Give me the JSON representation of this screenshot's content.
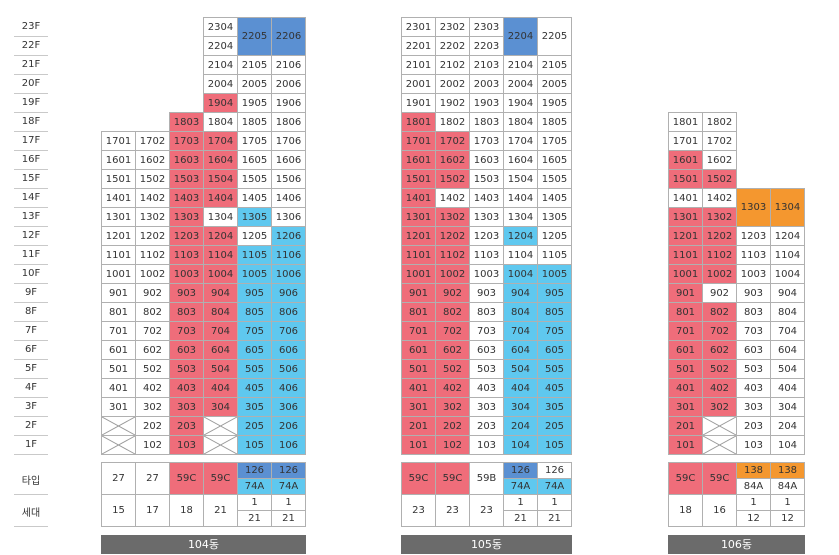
{
  "floors": [
    "23F",
    "22F",
    "21F",
    "20F",
    "19F",
    "18F",
    "17F",
    "16F",
    "15F",
    "14F",
    "13F",
    "12F",
    "11F",
    "10F",
    "9F",
    "8F",
    "7F",
    "6F",
    "5F",
    "4F",
    "3F",
    "2F",
    "1F"
  ],
  "row_labels": {
    "type": "타입",
    "households": "세대"
  },
  "colors": {
    "red": "#ef6d7a",
    "blue": "#5fc8ef",
    "dark_blue": "#5b90d2",
    "orange": "#f4972f",
    "bar": "#6b6b6b"
  },
  "buildings": [
    {
      "name": "104동",
      "columns": [
        {
          "line": "01",
          "top_floor": 17,
          "bottom_floor": 3,
          "x_floors": [
            1,
            2
          ],
          "red": [],
          "blue": []
        },
        {
          "line": "02",
          "top_floor": 17,
          "bottom_floor": 1,
          "x_floors": [],
          "red": [],
          "blue": []
        },
        {
          "line": "03",
          "top_floor": 18,
          "bottom_floor": 1,
          "x_floors": [],
          "red": [
            1,
            2,
            3,
            4,
            5,
            6,
            7,
            8,
            9,
            10,
            11,
            12,
            13,
            14,
            15,
            16,
            17,
            18
          ],
          "blue": []
        },
        {
          "line": "04",
          "top_floor": 23,
          "bottom_floor": 3,
          "x_floors": [
            1,
            2
          ],
          "red": [
            3,
            4,
            5,
            6,
            7,
            8,
            9,
            10,
            11,
            12,
            14,
            15,
            16,
            17,
            19
          ],
          "blue": []
        },
        {
          "line": "05",
          "top_floor": 21,
          "bottom_floor": 1,
          "x_floors": [],
          "red": [],
          "blue": [
            1,
            2,
            3,
            4,
            5,
            6,
            7,
            8,
            9,
            10,
            11,
            13
          ],
          "merged": {
            "label": "2205",
            "color": "dark_blue"
          }
        },
        {
          "line": "06",
          "top_floor": 21,
          "bottom_floor": 1,
          "x_floors": [],
          "red": [],
          "blue": [
            1,
            2,
            3,
            4,
            5,
            6,
            7,
            8,
            9,
            10,
            11,
            12
          ],
          "merged": {
            "label": "2206",
            "color": "dark_blue"
          }
        }
      ],
      "info": [
        {
          "type": "27",
          "type_color": "",
          "sub": "",
          "households": "15"
        },
        {
          "type": "27",
          "type_color": "",
          "sub": "",
          "households": "17"
        },
        {
          "type": "59C",
          "type_color": "red",
          "sub": "",
          "households": "18"
        },
        {
          "type": "59C",
          "type_color": "red",
          "sub": "",
          "households": "21"
        },
        {
          "type": "126",
          "type_color": "dark_blue",
          "sub": "74A",
          "sub_color": "blue",
          "households_top": "1",
          "households": "21"
        },
        {
          "type": "126",
          "type_color": "dark_blue",
          "sub": "74A",
          "sub_color": "blue",
          "households_top": "1",
          "households": "21"
        }
      ]
    },
    {
      "name": "105동",
      "columns": [
        {
          "line": "01",
          "top_floor": 23,
          "bottom_floor": 1,
          "x_floors": [],
          "red": [
            1,
            2,
            3,
            4,
            5,
            6,
            7,
            8,
            9,
            10,
            11,
            12,
            13,
            14,
            15,
            16,
            17,
            18
          ],
          "blue": []
        },
        {
          "line": "02",
          "top_floor": 23,
          "bottom_floor": 1,
          "x_floors": [],
          "red": [
            1,
            2,
            3,
            4,
            5,
            6,
            7,
            8,
            9,
            10,
            11,
            12,
            13,
            15,
            16,
            17
          ],
          "blue": []
        },
        {
          "line": "03",
          "top_floor": 23,
          "bottom_floor": 1,
          "x_floors": [],
          "red": [],
          "blue": []
        },
        {
          "line": "04",
          "top_floor": 21,
          "bottom_floor": 1,
          "x_floors": [],
          "red": [],
          "blue": [
            1,
            2,
            3,
            4,
            5,
            6,
            7,
            8,
            9,
            10,
            12
          ],
          "merged": {
            "label": "2204",
            "color": "dark_blue"
          }
        },
        {
          "line": "05",
          "top_floor": 21,
          "bottom_floor": 1,
          "x_floors": [],
          "red": [],
          "blue": [
            1,
            2,
            3,
            4,
            5,
            6,
            7,
            8,
            9,
            10
          ],
          "merged": {
            "label": "2205",
            "color": "white"
          }
        }
      ],
      "info": [
        {
          "type": "59C",
          "type_color": "red",
          "sub": "",
          "households": "23"
        },
        {
          "type": "59C",
          "type_color": "red",
          "sub": "",
          "households": "23"
        },
        {
          "type": "59B",
          "type_color": "",
          "sub": "",
          "households": "23"
        },
        {
          "type": "126",
          "type_color": "dark_blue",
          "sub": "74A",
          "sub_color": "blue",
          "households_top": "1",
          "households": "21"
        },
        {
          "type": "126",
          "type_color": "",
          "sub": "74A",
          "sub_color": "blue",
          "households_top": "1",
          "households": "21"
        }
      ]
    },
    {
      "name": "106동",
      "columns": [
        {
          "line": "01",
          "top_floor": 18,
          "bottom_floor": 1,
          "x_floors": [],
          "red": [
            1,
            2,
            3,
            4,
            5,
            6,
            7,
            8,
            9,
            10,
            11,
            12,
            13,
            15,
            16
          ],
          "blue": []
        },
        {
          "line": "02",
          "top_floor": 18,
          "bottom_floor": 3,
          "x_floors": [
            1,
            2
          ],
          "red": [
            3,
            4,
            5,
            6,
            7,
            8,
            10,
            11,
            12,
            13,
            15
          ],
          "blue": []
        },
        {
          "line": "03",
          "top_floor": 12,
          "bottom_floor": 1,
          "x_floors": [],
          "red": [],
          "blue": [],
          "merged13": {
            "label": "1303",
            "color": "orange"
          }
        },
        {
          "line": "04",
          "top_floor": 12,
          "bottom_floor": 1,
          "x_floors": [],
          "red": [],
          "blue": [],
          "merged13": {
            "label": "1304",
            "color": "orange"
          }
        }
      ],
      "info": [
        {
          "type": "59C",
          "type_color": "red",
          "sub": "",
          "households": "18"
        },
        {
          "type": "59C",
          "type_color": "red",
          "sub": "",
          "households": "16"
        },
        {
          "type": "138",
          "type_color": "orange",
          "sub": "84A",
          "sub_color": "",
          "households_top": "1",
          "households": "12"
        },
        {
          "type": "138",
          "type_color": "orange",
          "sub": "84A",
          "sub_color": "",
          "households_top": "1",
          "households": "12"
        }
      ]
    }
  ]
}
